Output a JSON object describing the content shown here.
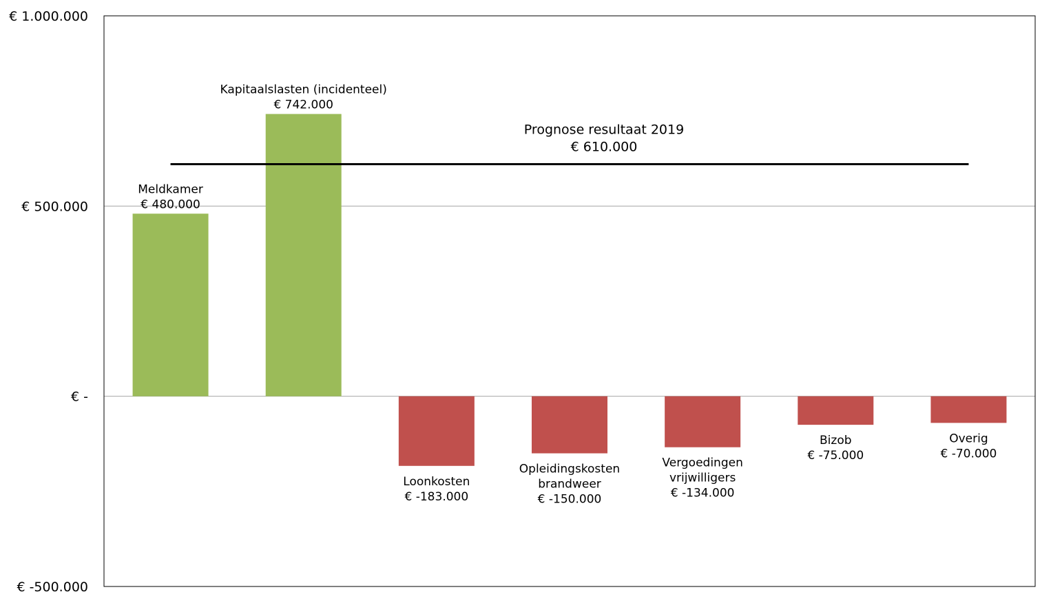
{
  "chart_data": {
    "type": "bar",
    "ylim": [
      -500000,
      1000000
    ],
    "yticks": [
      {
        "value": 1000000,
        "label": "€ 1.000.000"
      },
      {
        "value": 500000,
        "label": "€ 500.000"
      },
      {
        "value": 0,
        "label": "€ -"
      },
      {
        "value": -500000,
        "label": "€ -500.000"
      }
    ],
    "grid": true,
    "bars": [
      {
        "category": [
          "Meldkamer"
        ],
        "value": 480000,
        "value_label": "€ 480.000"
      },
      {
        "category": [
          "Kapitaalslasten (incidenteel)"
        ],
        "value": 742000,
        "value_label": "€ 742.000"
      },
      {
        "category": [
          "Loonkosten"
        ],
        "value": -183000,
        "value_label": "€ -183.000"
      },
      {
        "category": [
          "Opleidingskosten",
          "brandweer"
        ],
        "value": -150000,
        "value_label": "€ -150.000"
      },
      {
        "category": [
          "Vergoedingen",
          "vrijwilligers"
        ],
        "value": -134000,
        "value_label": "€ -134.000"
      },
      {
        "category": [
          "Bizob"
        ],
        "value": -75000,
        "value_label": "€ -75.000"
      },
      {
        "category": [
          "Overig"
        ],
        "value": -70000,
        "value_label": "€ -70.000"
      }
    ],
    "reference_line": {
      "value": 610000,
      "label": "Prognose resultaat 2019",
      "value_label": "€ 610.000"
    },
    "colors": {
      "positive": "#9bbb59",
      "negative": "#c0504d",
      "reference": "#000000",
      "gridline": "#a6a6a6",
      "frame": "#000000"
    }
  }
}
